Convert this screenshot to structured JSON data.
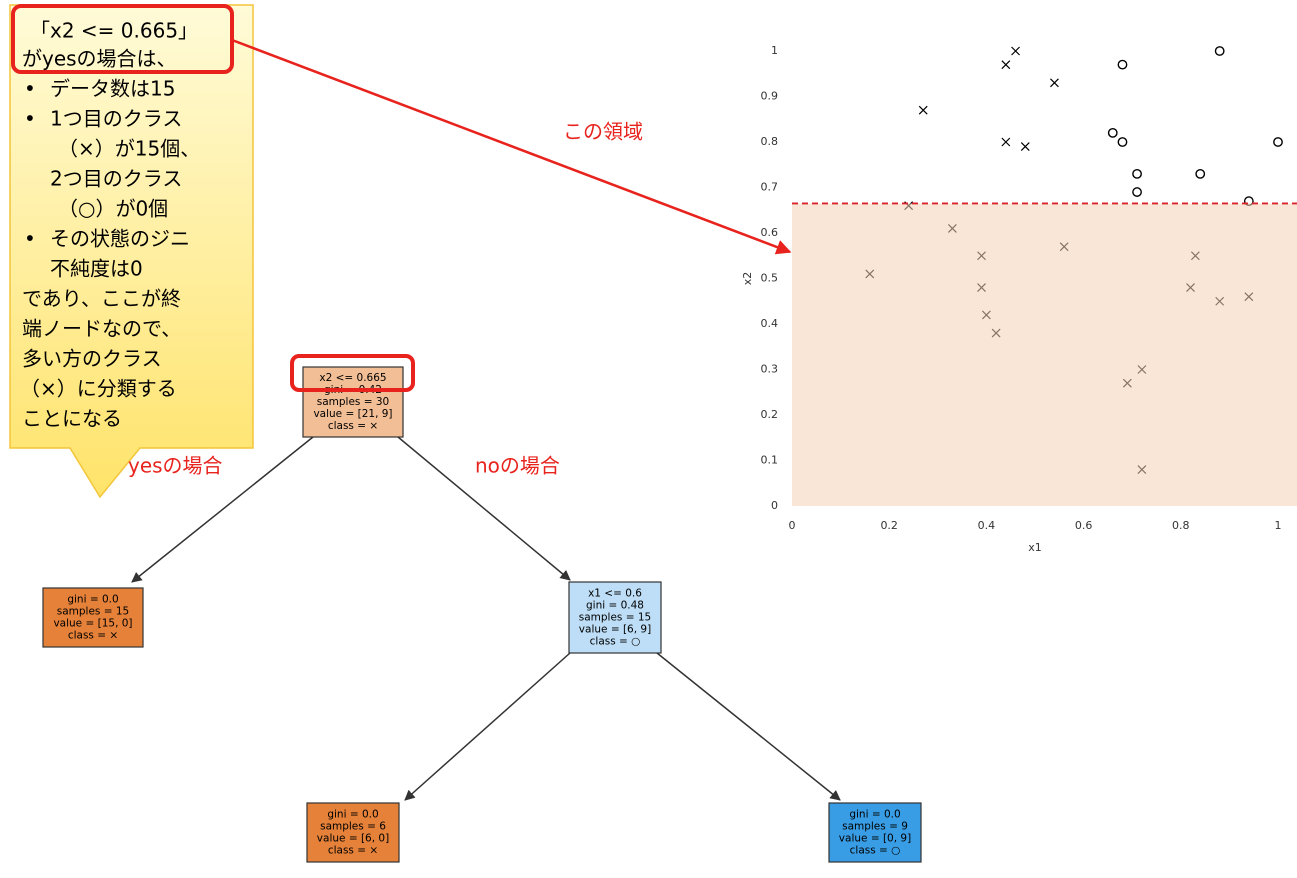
{
  "callout": {
    "title": "「x2 <= 0.665」",
    "intro": "がyesの場合は、",
    "bullets": [
      [
        "データ数は15"
      ],
      [
        "1つ目のクラス",
        "（×）が15個、",
        "2つ目のクラス",
        "（○）が0個"
      ],
      [
        "その状態のジニ",
        "不純度は0"
      ]
    ],
    "closing": [
      "であり、ここが終",
      "端ノードなので、",
      "多い方のクラス",
      "（×）に分類する",
      "ことになる"
    ]
  },
  "labels": {
    "yes": "yesの場合",
    "no": "noの場合",
    "region": "この領域"
  },
  "tree": {
    "nodes": [
      {
        "lines": [
          "x2 <= 0.665",
          "gini = 0.42",
          "samples = 30",
          "value = [21, 9]",
          "class = ×"
        ],
        "color": "#f2be96"
      },
      {
        "lines": [
          "gini = 0.0",
          "samples = 15",
          "value = [15, 0]",
          "class = ×"
        ],
        "color": "#e58139"
      },
      {
        "lines": [
          "x1 <= 0.6",
          "gini = 0.48",
          "samples = 15",
          "value = [6, 9]",
          "class = ○"
        ],
        "color": "#bddef6"
      },
      {
        "lines": [
          "gini = 0.0",
          "samples = 6",
          "value = [6, 0]",
          "class = ×"
        ],
        "color": "#e58139"
      },
      {
        "lines": [
          "gini = 0.0",
          "samples = 9",
          "value = [0, 9]",
          "class = ○"
        ],
        "color": "#399de5"
      }
    ]
  },
  "chart_data": {
    "type": "scatter",
    "x_label": "x1",
    "y_label": "x2",
    "xlim": [
      0,
      1
    ],
    "ylim": [
      0,
      1
    ],
    "xticks": [
      0,
      0.2,
      0.4,
      0.6,
      0.8,
      1
    ],
    "yticks": [
      0,
      0.1,
      0.2,
      0.3,
      0.4,
      0.5,
      0.6,
      0.7,
      0.8,
      0.9,
      1
    ],
    "threshold": 0.665,
    "region_color": "#f6d2b6",
    "series": [
      {
        "marker": "x",
        "color": "#000000",
        "x": [
          0.27,
          0.44,
          0.46,
          0.44,
          0.48,
          0.54,
          0.24,
          0.33,
          0.16,
          0.39,
          0.39,
          0.4,
          0.42,
          0.56,
          0.69,
          0.72,
          0.72,
          0.83,
          0.82,
          0.88,
          0.94
        ],
        "values": [
          0.87,
          0.97,
          1.0,
          0.8,
          0.79,
          0.93,
          0.66,
          0.61,
          0.51,
          0.55,
          0.48,
          0.42,
          0.38,
          0.57,
          0.27,
          0.3,
          0.08,
          0.55,
          0.48,
          0.45,
          0.46
        ]
      },
      {
        "marker": "o",
        "color": "#000000",
        "x": [
          0.68,
          0.88,
          0.66,
          0.68,
          0.71,
          0.71,
          0.84,
          0.94,
          1.0
        ],
        "values": [
          0.97,
          1.0,
          0.82,
          0.8,
          0.73,
          0.69,
          0.73,
          0.67,
          0.8
        ]
      }
    ]
  }
}
